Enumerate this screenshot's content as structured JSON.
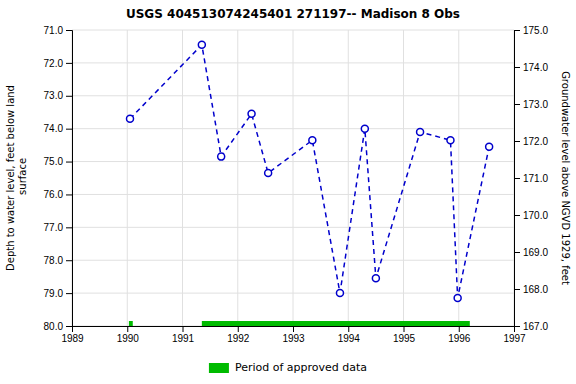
{
  "chart_data": {
    "type": "line",
    "title": "USGS 404513074245401 271197-- Madison 8 Obs",
    "ylabel": "Depth to water level, feet below land\n surface",
    "y2label": "Groundwater level above NGVD 1929, feet",
    "x": [
      1990.05,
      1991.35,
      1991.7,
      1992.25,
      1992.55,
      1993.35,
      1993.85,
      1994.3,
      1994.5,
      1995.3,
      1995.85,
      1995.98,
      1996.55
    ],
    "values": [
      73.7,
      71.45,
      74.85,
      73.55,
      75.35,
      74.35,
      79.0,
      74.0,
      78.55,
      74.1,
      74.35,
      79.15,
      74.55
    ],
    "color": "#0000cc",
    "marker": "circle",
    "line_style": "dashed",
    "xlim": [
      1989,
      1997
    ],
    "xticks": [
      1989,
      1990,
      1991,
      1992,
      1993,
      1994,
      1995,
      1996,
      1997
    ],
    "ylim": [
      80.0,
      71.0
    ],
    "yticks": [
      {
        "value": 71.0,
        "label": "71.0"
      },
      {
        "value": 72.0,
        "label": "72.0"
      },
      {
        "value": 73.0,
        "label": "73.0"
      },
      {
        "value": 74.0,
        "label": "74.0"
      },
      {
        "value": 75.0,
        "label": "75.0"
      },
      {
        "value": 76.0,
        "label": "76.0"
      },
      {
        "value": 77.0,
        "label": "77.0"
      },
      {
        "value": 78.0,
        "label": "78.0"
      },
      {
        "value": 79.0,
        "label": "79.0"
      },
      {
        "value": 80.0,
        "label": "80.0"
      }
    ],
    "y2lim": [
      167.0,
      175.0
    ],
    "y2ticks": [
      {
        "value": 167.0,
        "label": "167.0"
      },
      {
        "value": 168.0,
        "label": "168.0"
      },
      {
        "value": 169.0,
        "label": "169.0"
      },
      {
        "value": 170.0,
        "label": "170.0"
      },
      {
        "value": 171.0,
        "label": "171.0"
      },
      {
        "value": 172.0,
        "label": "172.0"
      },
      {
        "value": 173.0,
        "label": "173.0"
      },
      {
        "value": 174.0,
        "label": "174.0"
      },
      {
        "value": 175.0,
        "label": "175.0"
      }
    ],
    "grid": true,
    "approved_periods": {
      "name": "Period of approved data",
      "color": "#00bb00",
      "segments": [
        [
          1990.03,
          1990.1
        ],
        [
          1991.35,
          1996.2
        ]
      ]
    }
  }
}
